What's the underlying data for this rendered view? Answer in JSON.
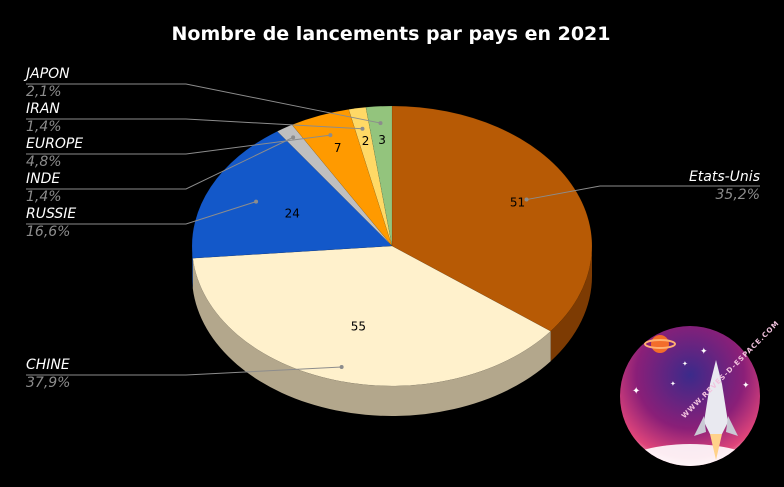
{
  "chart_data": {
    "type": "pie",
    "title": "Nombre de lancements par pays en 2021",
    "slices": [
      {
        "name": "Etats-Unis",
        "value": 51,
        "pct": "35,2%",
        "color": "#b75a05",
        "side": "#7d3b03"
      },
      {
        "name": "CHINE",
        "value": 55,
        "pct": "37,9%",
        "color": "#fff1cc",
        "side": "#b3a78c"
      },
      {
        "name": "RUSSIE",
        "value": 24,
        "pct": "16,6%",
        "color": "#1358c9",
        "side": "#0c3a86"
      },
      {
        "name": "INDE",
        "value": 2,
        "pct": "1,4%",
        "color": "#bfbfbf",
        "side": "#7f7f7f"
      },
      {
        "name": "EUROPE",
        "value": 7,
        "pct": "4,8%",
        "color": "#ff9a00",
        "side": "#b36c00"
      },
      {
        "name": "IRAN",
        "value": 2,
        "pct": "1,4%",
        "color": "#ffd966",
        "side": "#b39848"
      },
      {
        "name": "JAPON",
        "value": 3,
        "pct": "2,1%",
        "color": "#93c47d",
        "side": "#5f8a4f"
      }
    ],
    "data_labels_shown": [
      "51",
      "55",
      "24",
      "7",
      "2",
      "3"
    ],
    "legend": "none",
    "chart_style": "3d-pie"
  },
  "logo": {
    "url_text": "WWW.REVES-D-ESPACE.COM"
  }
}
